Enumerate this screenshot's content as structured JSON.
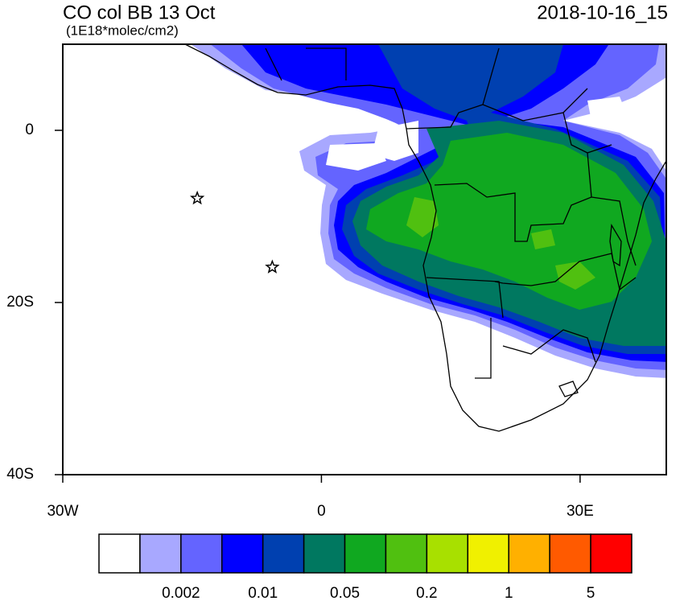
{
  "chart_data": {
    "type": "map",
    "title": "CO col BB 13 Oct",
    "subtitle": "(1E18*molec/cm2)",
    "time_label": "2018-10-16_15",
    "xlim": [
      -30,
      40
    ],
    "ylim": [
      -40,
      10
    ],
    "xticks": [
      {
        "value": -30,
        "label": "30W"
      },
      0,
      {
        "value": 30,
        "label": "30E"
      }
    ],
    "yticks": [
      0,
      {
        "value": -20,
        "label": "20S"
      },
      {
        "value": -40,
        "label": "40S"
      }
    ],
    "markers": {
      "x": [
        -14.4,
        -5.7
      ],
      "y": [
        -7.9,
        -15.9
      ]
    },
    "colorbar": {
      "colors": [
        "#ffffff",
        "#a8a8ff",
        "#6464ff",
        "#0000ff",
        "#0040b0",
        "#007860",
        "#10a820",
        "#50c010",
        "#a8e000",
        "#f0f000",
        "#ffb000",
        "#ff5a00",
        "#ff0000"
      ],
      "labels": [
        0.002,
        0.01,
        0.05,
        0.2,
        1,
        5
      ]
    }
  }
}
